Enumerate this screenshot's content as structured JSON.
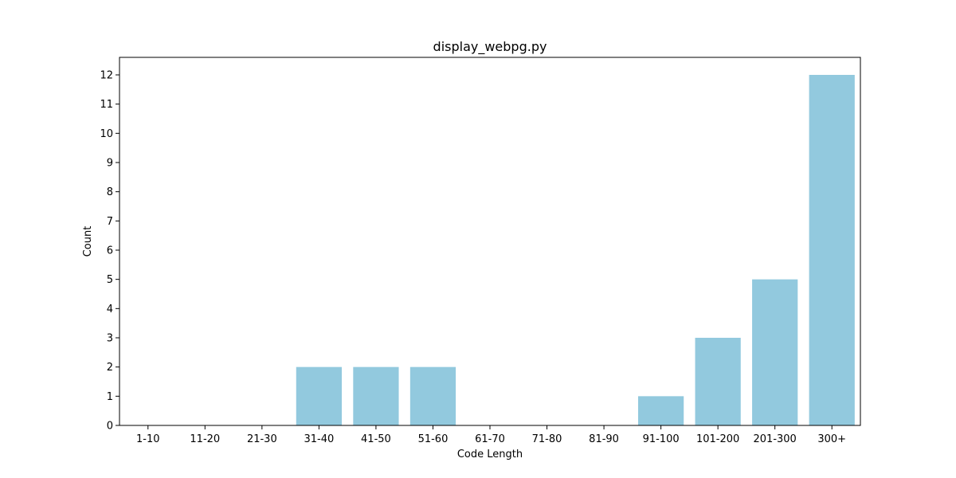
{
  "chart_data": {
    "type": "bar",
    "title": "display_webpg.py",
    "xlabel": "Code Length",
    "ylabel": "Count",
    "categories": [
      "1-10",
      "11-20",
      "21-30",
      "31-40",
      "41-50",
      "51-60",
      "61-70",
      "71-80",
      "81-90",
      "91-100",
      "101-200",
      "201-300",
      "300+"
    ],
    "values": [
      0,
      0,
      0,
      2,
      2,
      2,
      0,
      0,
      0,
      1,
      3,
      5,
      12
    ],
    "ylim": [
      0,
      12.6
    ],
    "yticks": [
      0,
      1,
      2,
      3,
      4,
      5,
      6,
      7,
      8,
      9,
      10,
      11,
      12
    ],
    "bar_color": "#92c9de",
    "grid": false,
    "legend": "none"
  }
}
